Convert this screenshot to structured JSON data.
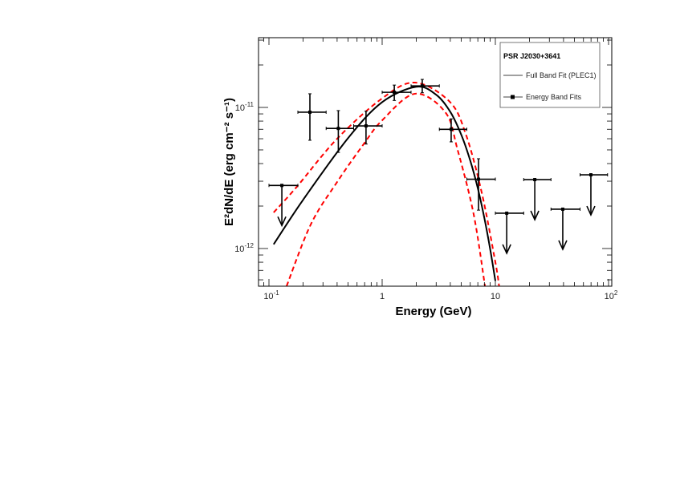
{
  "chart_data": {
    "type": "scatter",
    "title": "",
    "xlabel": "Energy (GeV)",
    "ylabel": "E²dN/dE (erg cm⁻² s⁻¹)",
    "xscale": "log",
    "yscale": "log",
    "xlim": [
      0.078,
      108
    ],
    "ylim": [
      5.4e-13,
      3.1e-11
    ],
    "grid": false,
    "legend_position": "top-right",
    "legend": {
      "title": "PSR J2030+3641",
      "entries": [
        "Full Band Fit (PLEC1)",
        "Energy Band Fits"
      ]
    },
    "xticks": [
      {
        "value": 0.1,
        "base": "10",
        "exp": "-1"
      },
      {
        "value": 1,
        "base": "1",
        "exp": ""
      },
      {
        "value": 10,
        "base": "10",
        "exp": ""
      },
      {
        "value": 100,
        "base": "10",
        "exp": "2"
      }
    ],
    "yticks": [
      {
        "value": 1e-11,
        "base": "10",
        "exp": "-11"
      },
      {
        "value": 1e-12,
        "base": "10",
        "exp": "-12"
      }
    ],
    "colors": {
      "fit": "#000000",
      "band": "#ff0000",
      "points": "#000000"
    },
    "energy_band_fits": [
      {
        "e": 0.13,
        "e_lo": 0.1,
        "e_hi": 0.18,
        "y": 2.8e-12,
        "upper_limit": true
      },
      {
        "e": 0.23,
        "e_lo": 0.18,
        "e_hi": 0.32,
        "y": 9.25e-12,
        "y_lo": 5.85e-12,
        "y_hi": 1.25e-11,
        "upper_limit": false
      },
      {
        "e": 0.41,
        "e_lo": 0.32,
        "e_hi": 0.56,
        "y": 7.1e-12,
        "y_lo": 4.8e-12,
        "y_hi": 9.5e-12,
        "upper_limit": false
      },
      {
        "e": 0.72,
        "e_lo": 0.56,
        "e_hi": 1.0,
        "y": 7.4e-12,
        "y_lo": 5.5e-12,
        "y_hi": 9.4e-12,
        "upper_limit": false
      },
      {
        "e": 1.28,
        "e_lo": 1.0,
        "e_hi": 1.8,
        "y": 1.28e-11,
        "y_lo": 1.12e-11,
        "y_hi": 1.44e-11,
        "upper_limit": false
      },
      {
        "e": 2.26,
        "e_lo": 1.8,
        "e_hi": 3.2,
        "y": 1.42e-11,
        "y_lo": 1.27e-11,
        "y_hi": 1.58e-11,
        "upper_limit": false
      },
      {
        "e": 4.07,
        "e_lo": 3.2,
        "e_hi": 5.6,
        "y": 7e-12,
        "y_lo": 5.7e-12,
        "y_hi": 8.3e-12,
        "upper_limit": false
      },
      {
        "e": 7.1,
        "e_lo": 5.6,
        "e_hi": 10,
        "y": 3.1e-12,
        "y_lo": 1.87e-12,
        "y_hi": 4.33e-12,
        "upper_limit": false
      },
      {
        "e": 12.6,
        "e_lo": 10,
        "e_hi": 17.8,
        "y": 1.78e-12,
        "upper_limit": true
      },
      {
        "e": 22.3,
        "e_lo": 17.8,
        "e_hi": 31,
        "y": 3.08e-12,
        "upper_limit": true
      },
      {
        "e": 39.4,
        "e_lo": 31,
        "e_hi": 56,
        "y": 1.9e-12,
        "upper_limit": true
      },
      {
        "e": 69.8,
        "e_lo": 56,
        "e_hi": 98,
        "y": 3.33e-12,
        "upper_limit": true
      }
    ],
    "full_band_fit": {
      "x": [
        0.11,
        0.2,
        0.5,
        1,
        2,
        3,
        4,
        5,
        6,
        7,
        8,
        9,
        10
      ],
      "y": [
        1.07e-12,
        2.21e-12,
        6.06e-12,
        1.09e-11,
        1.4e-11,
        1.23e-11,
        9.3e-12,
        6.4e-12,
        4.2e-12,
        2.67e-12,
        1.64e-12,
        9.9e-13,
        5.9e-13
      ]
    },
    "fit_band_upper": {
      "x": [
        0.11,
        0.177,
        0.4,
        1.0,
        1.95,
        3.94,
        5.47,
        7.57,
        10,
        10.8
      ],
      "y": [
        1.8e-12,
        2.75e-12,
        6e-12,
        1.16e-11,
        1.5e-11,
        1.1e-11,
        6.5e-12,
        2.5e-12,
        8e-13,
        5.4e-13
      ]
    },
    "fit_band_lower": {
      "x": [
        0.143,
        0.234,
        0.4,
        0.687,
        1.0,
        1.95,
        3.63,
        4.64,
        6.43,
        8.1
      ],
      "y": [
        5.4e-13,
        1.48e-12,
        2.96e-12,
        5.5e-12,
        8.1e-12,
        1.25e-11,
        9.2e-12,
        5e-12,
        1.75e-12,
        5.4e-13
      ]
    }
  }
}
